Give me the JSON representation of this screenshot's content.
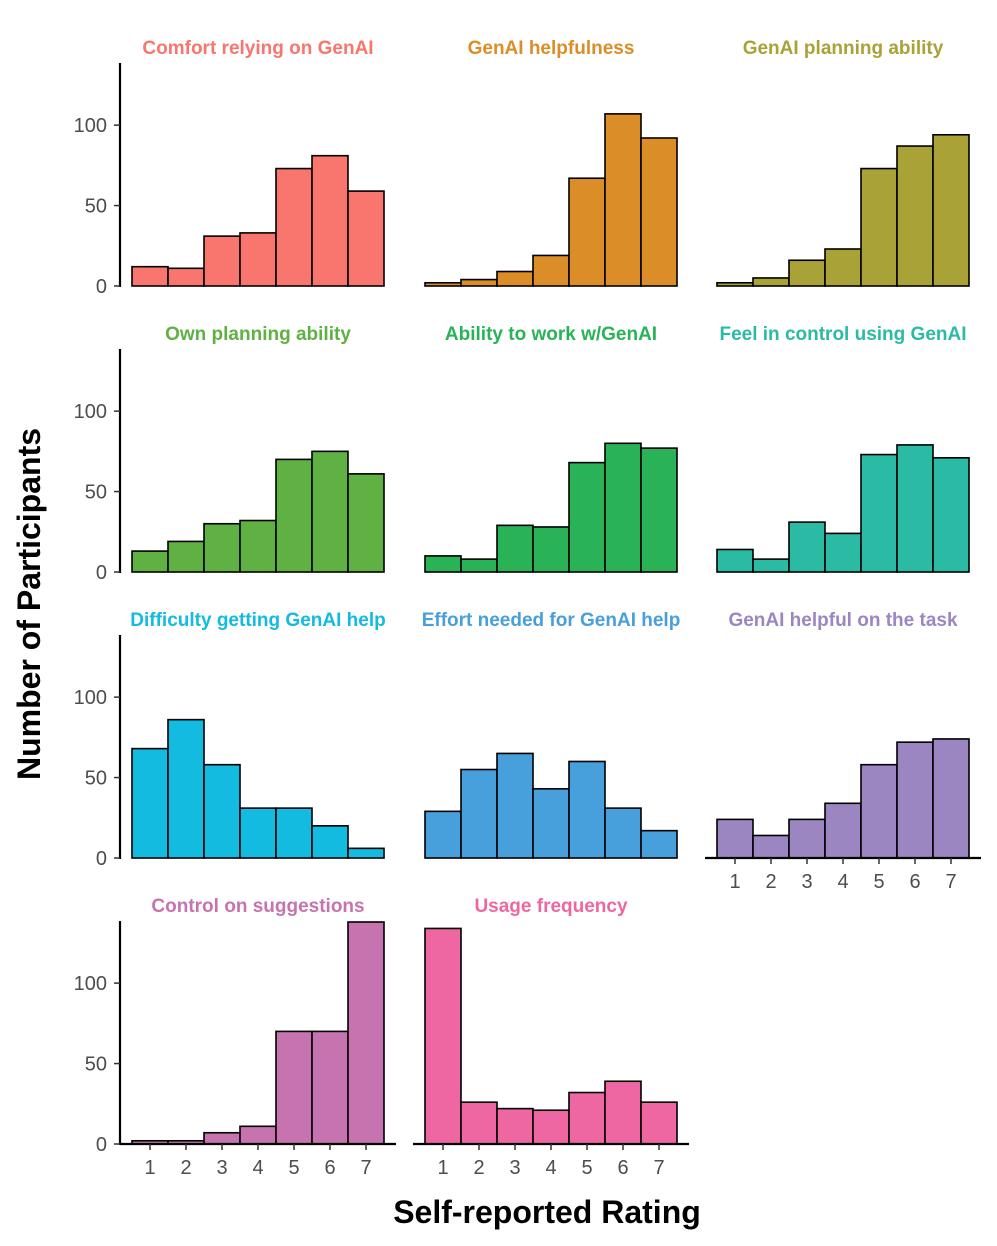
{
  "chart_data": {
    "type": "bar",
    "xlabel": "Self-reported Rating",
    "ylabel": "Number of Participants",
    "categories": [
      "1",
      "2",
      "3",
      "4",
      "5",
      "6",
      "7"
    ],
    "ylim": [
      0,
      138
    ],
    "yticks": [
      "0",
      "50",
      "100"
    ],
    "ytick_values": [
      0,
      50,
      100
    ],
    "panels": [
      {
        "title": "Comfort relying on GenAI",
        "color": "#F8766D",
        "values": [
          12,
          11,
          31,
          33,
          73,
          81,
          59
        ]
      },
      {
        "title": "GenAI helpfulness",
        "color": "#DB8E27",
        "values": [
          2,
          4,
          9,
          19,
          67,
          107,
          92
        ]
      },
      {
        "title": "GenAI planning ability",
        "color": "#A9A237",
        "values": [
          2,
          5,
          16,
          23,
          73,
          87,
          94
        ]
      },
      {
        "title": "Own planning ability",
        "color": "#5EB142",
        "values": [
          13,
          19,
          30,
          32,
          70,
          75,
          61
        ]
      },
      {
        "title": "Ability to work w/GenAI",
        "color": "#2AB356",
        "values": [
          10,
          8,
          29,
          28,
          68,
          80,
          77
        ]
      },
      {
        "title": "Feel in control using GenAI",
        "color": "#2BBBA5",
        "values": [
          14,
          8,
          31,
          24,
          73,
          79,
          71
        ]
      },
      {
        "title": "Difficulty getting GenAI help",
        "color": "#13BBE0",
        "values": [
          68,
          86,
          58,
          31,
          31,
          20,
          6
        ]
      },
      {
        "title": "Effort needed for GenAI help",
        "color": "#479FDB",
        "values": [
          29,
          55,
          65,
          43,
          60,
          31,
          17
        ]
      },
      {
        "title": "GenAI helpful on the task",
        "color": "#9B86C2",
        "values": [
          24,
          14,
          24,
          34,
          58,
          72,
          74
        ]
      },
      {
        "title": "Control on suggestions",
        "color": "#C673AF",
        "values": [
          2,
          2,
          7,
          11,
          70,
          70,
          138
        ]
      },
      {
        "title": "Usage frequency",
        "color": "#EE67A3",
        "values": [
          134,
          26,
          22,
          21,
          32,
          39,
          26
        ]
      }
    ]
  }
}
